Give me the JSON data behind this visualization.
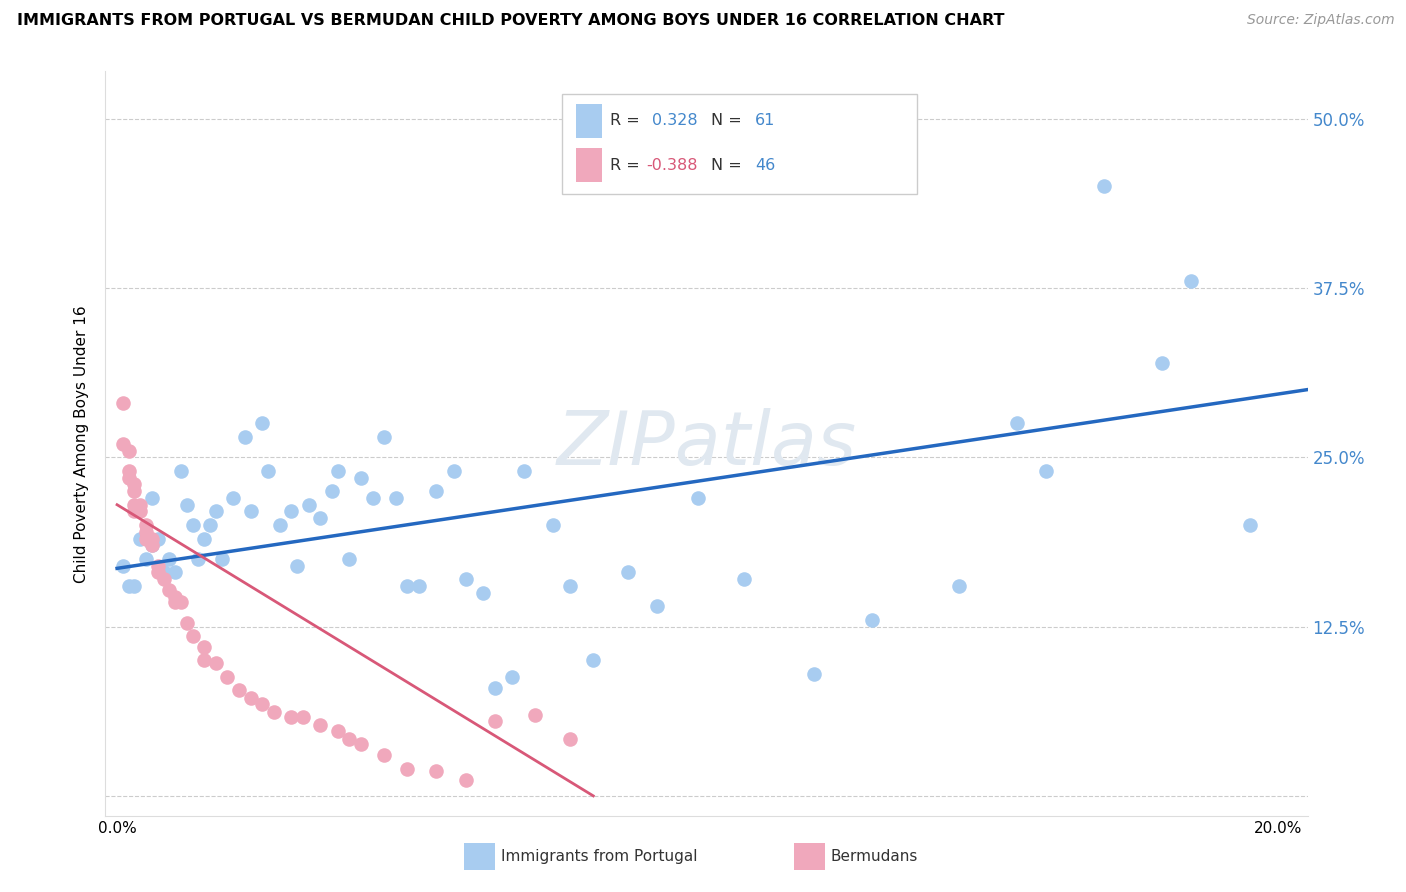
{
  "title": "IMMIGRANTS FROM PORTUGAL VS BERMUDAN CHILD POVERTY AMONG BOYS UNDER 16 CORRELATION CHART",
  "source": "Source: ZipAtlas.com",
  "ylabel": "Child Poverty Among Boys Under 16",
  "xlim": [
    -0.002,
    0.205
  ],
  "ylim": [
    -0.015,
    0.535
  ],
  "x_ticks": [
    0.0,
    0.05,
    0.1,
    0.15,
    0.2
  ],
  "x_tick_labels": [
    "0.0%",
    "",
    "",
    "",
    "20.0%"
  ],
  "y_ticks": [
    0.0,
    0.125,
    0.25,
    0.375,
    0.5
  ],
  "y_tick_labels_right": [
    "",
    "12.5%",
    "25.0%",
    "37.5%",
    "50.0%"
  ],
  "blue_color": "#A8CCF0",
  "pink_color": "#F0A8BC",
  "line_blue": "#2468C0",
  "line_pink": "#D85878",
  "watermark": "ZIPatlas",
  "blue_x": [
    0.001,
    0.002,
    0.003,
    0.004,
    0.005,
    0.006,
    0.006,
    0.007,
    0.008,
    0.009,
    0.01,
    0.011,
    0.012,
    0.013,
    0.014,
    0.015,
    0.016,
    0.017,
    0.018,
    0.02,
    0.022,
    0.023,
    0.025,
    0.026,
    0.028,
    0.03,
    0.031,
    0.033,
    0.035,
    0.037,
    0.038,
    0.04,
    0.042,
    0.044,
    0.046,
    0.048,
    0.05,
    0.052,
    0.055,
    0.058,
    0.06,
    0.063,
    0.065,
    0.068,
    0.07,
    0.075,
    0.078,
    0.082,
    0.088,
    0.093,
    0.1,
    0.108,
    0.12,
    0.13,
    0.145,
    0.155,
    0.16,
    0.17,
    0.18,
    0.185,
    0.195
  ],
  "blue_y": [
    0.17,
    0.155,
    0.155,
    0.19,
    0.175,
    0.22,
    0.185,
    0.19,
    0.165,
    0.175,
    0.165,
    0.24,
    0.215,
    0.2,
    0.175,
    0.19,
    0.2,
    0.21,
    0.175,
    0.22,
    0.265,
    0.21,
    0.275,
    0.24,
    0.2,
    0.21,
    0.17,
    0.215,
    0.205,
    0.225,
    0.24,
    0.175,
    0.235,
    0.22,
    0.265,
    0.22,
    0.155,
    0.155,
    0.225,
    0.24,
    0.16,
    0.15,
    0.08,
    0.088,
    0.24,
    0.2,
    0.155,
    0.1,
    0.165,
    0.14,
    0.22,
    0.16,
    0.09,
    0.13,
    0.155,
    0.275,
    0.24,
    0.45,
    0.32,
    0.38,
    0.2
  ],
  "pink_x": [
    0.001,
    0.001,
    0.002,
    0.002,
    0.002,
    0.003,
    0.003,
    0.003,
    0.003,
    0.004,
    0.004,
    0.005,
    0.005,
    0.005,
    0.006,
    0.006,
    0.007,
    0.007,
    0.008,
    0.009,
    0.01,
    0.01,
    0.011,
    0.012,
    0.013,
    0.015,
    0.015,
    0.017,
    0.019,
    0.021,
    0.023,
    0.025,
    0.027,
    0.03,
    0.032,
    0.035,
    0.038,
    0.04,
    0.042,
    0.046,
    0.05,
    0.055,
    0.06,
    0.065,
    0.072,
    0.078
  ],
  "pink_y": [
    0.29,
    0.26,
    0.255,
    0.24,
    0.235,
    0.23,
    0.225,
    0.215,
    0.21,
    0.215,
    0.21,
    0.2,
    0.195,
    0.19,
    0.19,
    0.185,
    0.17,
    0.165,
    0.16,
    0.152,
    0.147,
    0.143,
    0.143,
    0.128,
    0.118,
    0.11,
    0.1,
    0.098,
    0.088,
    0.078,
    0.072,
    0.068,
    0.062,
    0.058,
    0.058,
    0.052,
    0.048,
    0.042,
    0.038,
    0.03,
    0.02,
    0.018,
    0.012,
    0.055,
    0.06,
    0.042
  ],
  "blue_trend_x": [
    0.0,
    0.205
  ],
  "blue_trend_y": [
    0.168,
    0.3
  ],
  "pink_trend_x": [
    0.0,
    0.082
  ],
  "pink_trend_y": [
    0.215,
    0.0
  ]
}
